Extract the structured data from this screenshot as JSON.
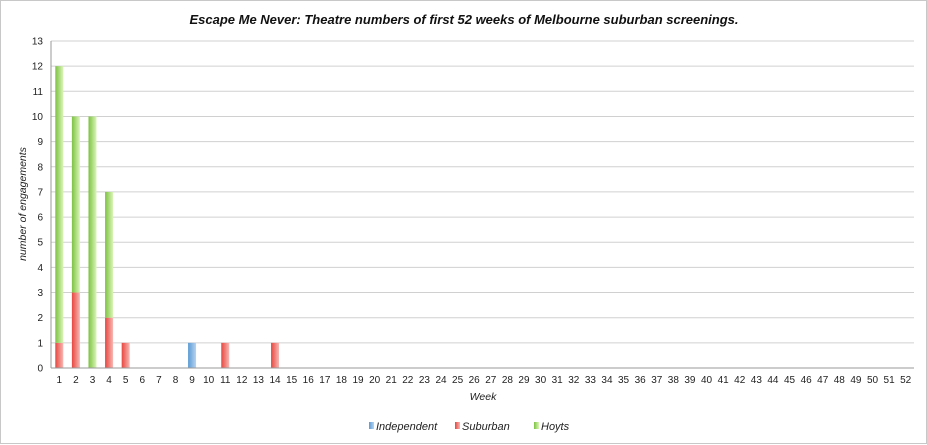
{
  "chart_data": {
    "type": "bar",
    "stacked": true,
    "title": "Escape Me Never: Theatre numbers of first 52 weeks of Melbourne suburban screenings.",
    "xlabel": "Week",
    "ylabel": "number of engagements",
    "ylim": [
      0,
      13
    ],
    "yticks": [
      0,
      1,
      2,
      3,
      4,
      5,
      6,
      7,
      8,
      9,
      10,
      11,
      12,
      13
    ],
    "grid": true,
    "legend_position": "bottom",
    "categories": [
      "1",
      "2",
      "3",
      "4",
      "5",
      "6",
      "7",
      "8",
      "9",
      "10",
      "11",
      "12",
      "13",
      "14",
      "15",
      "16",
      "17",
      "18",
      "19",
      "20",
      "21",
      "22",
      "23",
      "24",
      "25",
      "26",
      "27",
      "28",
      "29",
      "30",
      "31",
      "32",
      "33",
      "34",
      "35",
      "36",
      "37",
      "38",
      "39",
      "40",
      "41",
      "42",
      "43",
      "44",
      "45",
      "46",
      "47",
      "48",
      "49",
      "50",
      "51",
      "52"
    ],
    "series": [
      {
        "name": "Independent",
        "color": "#5b9bd5",
        "color_light": "#b7d3ef",
        "values": [
          0,
          0,
          0,
          0,
          0,
          0,
          0,
          0,
          1,
          0,
          0,
          0,
          0,
          0,
          0,
          0,
          0,
          0,
          0,
          0,
          0,
          0,
          0,
          0,
          0,
          0,
          0,
          0,
          0,
          0,
          0,
          0,
          0,
          0,
          0,
          0,
          0,
          0,
          0,
          0,
          0,
          0,
          0,
          0,
          0,
          0,
          0,
          0,
          0,
          0,
          0,
          0
        ]
      },
      {
        "name": "Suburban",
        "color": "#e8463f",
        "color_light": "#f7b8b4",
        "values": [
          1,
          3,
          0,
          2,
          1,
          0,
          0,
          0,
          0,
          0,
          1,
          0,
          0,
          1,
          0,
          0,
          0,
          0,
          0,
          0,
          0,
          0,
          0,
          0,
          0,
          0,
          0,
          0,
          0,
          0,
          0,
          0,
          0,
          0,
          0,
          0,
          0,
          0,
          0,
          0,
          0,
          0,
          0,
          0,
          0,
          0,
          0,
          0,
          0,
          0,
          0,
          0
        ]
      },
      {
        "name": "Hoyts",
        "color": "#7cc242",
        "color_light": "#dcf5b8",
        "values": [
          11,
          7,
          10,
          5,
          0,
          0,
          0,
          0,
          0,
          0,
          0,
          0,
          0,
          0,
          0,
          0,
          0,
          0,
          0,
          0,
          0,
          0,
          0,
          0,
          0,
          0,
          0,
          0,
          0,
          0,
          0,
          0,
          0,
          0,
          0,
          0,
          0,
          0,
          0,
          0,
          0,
          0,
          0,
          0,
          0,
          0,
          0,
          0,
          0,
          0,
          0,
          0
        ]
      }
    ]
  }
}
